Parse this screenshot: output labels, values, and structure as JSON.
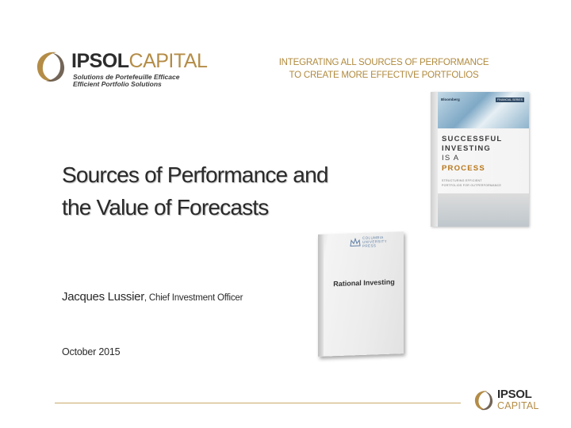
{
  "header": {
    "logo_bold": "IPSOL",
    "logo_light": "CAPITAL",
    "logo_tagline_1": "Solutions de Portefeuille Efficace",
    "logo_tagline_2": "Efficient Portfolio Solutions",
    "tagline_1": "INTEGRATING ALL SOURCES OF PERFORMANCE",
    "tagline_2": "TO CREATE MORE EFFECTIVE PORTFOLIOS",
    "accent_color": "#b08a3e"
  },
  "book1": {
    "publisher": "Bloomberg",
    "series": "FINANCIAL SERIES",
    "title_1": "SUCCESSFUL",
    "title_2": "INVESTING",
    "title_3": "IS A",
    "title_4": "PROCESS",
    "subtitle_1": "STRUCTURING EFFICIENT",
    "subtitle_2": "PORTFOLIOS FOR OUTPERFORMANCE"
  },
  "book2": {
    "press": "COLUMBIA\nUNIVERSITY\nPRESS",
    "title": "Rational Investing"
  },
  "slide": {
    "title_line_1": "Sources of Performance and",
    "title_line_2": "the Value of Forecasts",
    "author_name": "Jacques Lussier",
    "author_role": ", Chief Investment Officer",
    "date": "October 2015"
  },
  "footer": {
    "logo_bold": "IPSOL",
    "logo_light": "CAPITAL"
  }
}
